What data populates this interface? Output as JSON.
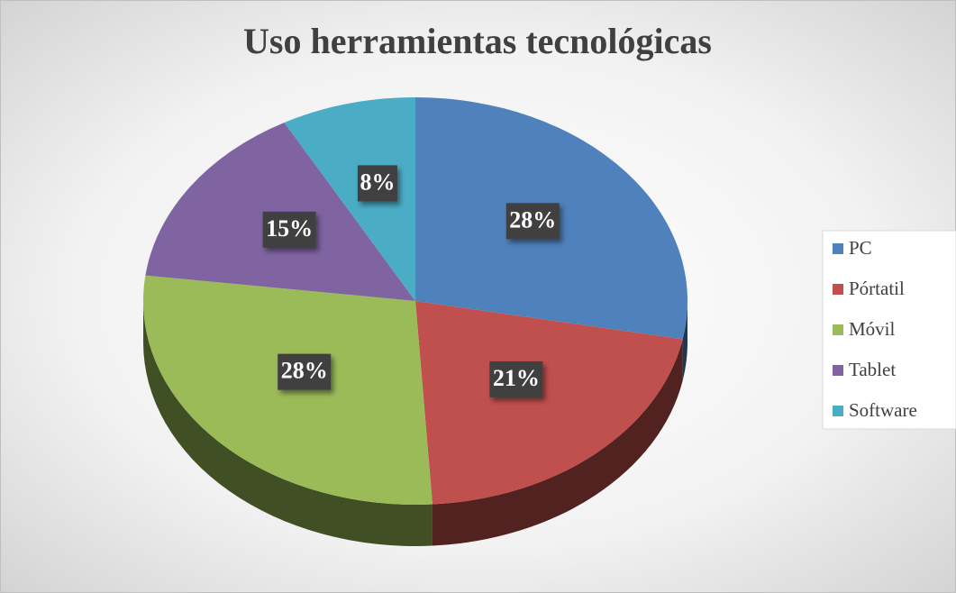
{
  "chart_data": {
    "type": "pie",
    "title": "Uso herramientas tecnológicas",
    "categories": [
      "PC",
      "Pórtatil",
      "Móvil",
      "Tablet",
      "Software"
    ],
    "values": [
      28,
      21,
      28,
      15,
      8
    ],
    "value_labels": [
      "28%",
      "21%",
      "28%",
      "15%",
      "8%"
    ],
    "colors": [
      "#4f81bd",
      "#c0504d",
      "#9bbb59",
      "#8064a2",
      "#4bacc6"
    ],
    "legend": "right"
  }
}
